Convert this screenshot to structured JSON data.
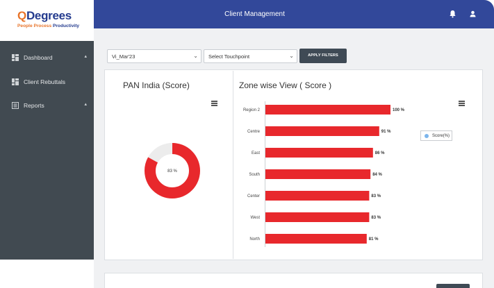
{
  "brand": {
    "logo_q": "Q",
    "logo_rest": "Degrees",
    "tagline_1": "People Process ",
    "tagline_2": "Productivity"
  },
  "header": {
    "title": "Client Management"
  },
  "sidebar": {
    "items": [
      {
        "label": "Dashboard",
        "icon": "dashboard-icon",
        "has_caret": true
      },
      {
        "label": "Client Rebuttals",
        "icon": "dashboard-icon",
        "has_caret": false
      },
      {
        "label": "Reports",
        "icon": "report-icon",
        "has_caret": true
      }
    ]
  },
  "filters": {
    "period_value": "Vi_Mar'23",
    "touchpoint_value": "Select Touchpoint",
    "apply_label": "APPLY FILTERS"
  },
  "pan_card": {
    "title": "PAN India (Score)",
    "center_label": "83 %",
    "score_fraction": 0.83,
    "color": "#e8282c",
    "remainder_color": "#ececec"
  },
  "zone_card": {
    "title": "Zone wise View ( Score )",
    "legend_label": "Score(%)"
  },
  "chart_data": {
    "type": "bar",
    "orientation": "horizontal",
    "categories": [
      "Region 2",
      "Centre",
      "East",
      "South",
      "Center",
      "West",
      "North"
    ],
    "values": [
      100,
      91,
      86,
      84,
      83,
      83,
      81
    ],
    "value_labels": [
      "100 %",
      "91 %",
      "86 %",
      "84 %",
      "83 %",
      "83 %",
      "81 %"
    ],
    "series": [
      {
        "name": "Score(%)",
        "values": [
          100,
          91,
          86,
          84,
          83,
          83,
          81
        ]
      }
    ],
    "xlim": [
      0,
      100
    ],
    "bar_color": "#e8282c",
    "grid": false
  }
}
